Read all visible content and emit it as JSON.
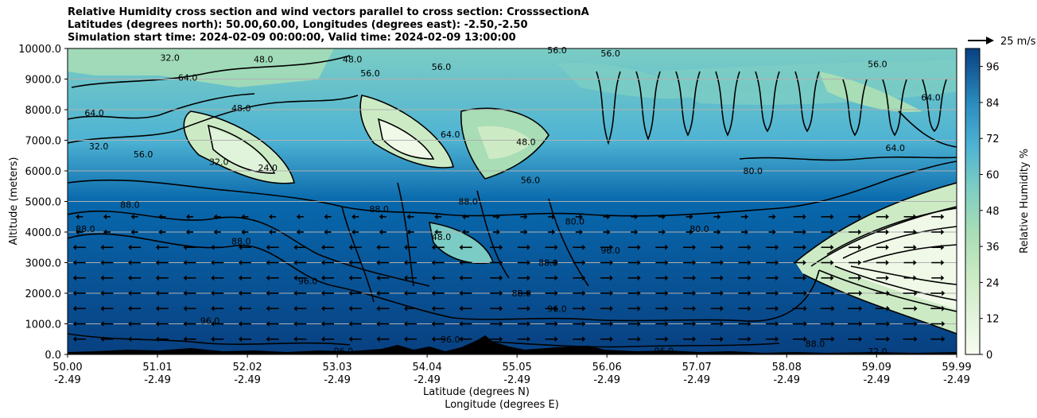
{
  "title": {
    "line1": "Relative Humidity cross section and wind vectors parallel to cross section: CrosssectionA",
    "line2": "Latitudes (degrees north): 50.00,60.00, Longitudes (degrees east): -2.50,-2.50",
    "line3": "Simulation start time: 2024-02-09 00:00:00, Valid time: 2024-02-09 13:00:00"
  },
  "colors": {
    "low": "#f7fcf0",
    "mid_low": "#a8ddb5",
    "mid": "#4eb3d3",
    "mid_high": "#2b8cbe",
    "high": "#084081",
    "contour": "#000000",
    "terrain": "#000000"
  },
  "chart_data": {
    "type": "heatmap",
    "subtype": "filled contour cross-section with wind vectors",
    "ylabel": "Altitude (meters)",
    "xlabel_line1": "Latitude (degrees N)",
    "xlabel_line2": "Longitude (degrees E)",
    "y_ticks": [
      "0.0",
      "1000.0",
      "2000.0",
      "3000.0",
      "4000.0",
      "5000.0",
      "6000.0",
      "7000.0",
      "8000.0",
      "9000.0",
      "10000.0"
    ],
    "y_tick_values": [
      0,
      1000,
      2000,
      3000,
      4000,
      5000,
      6000,
      7000,
      8000,
      9000,
      10000
    ],
    "ylim": [
      0,
      10000
    ],
    "x_ticks": [
      {
        "lat": "50.00",
        "lon": "-2.49"
      },
      {
        "lat": "51.01",
        "lon": "-2.49"
      },
      {
        "lat": "52.02",
        "lon": "-2.49"
      },
      {
        "lat": "53.03",
        "lon": "-2.49"
      },
      {
        "lat": "54.04",
        "lon": "-2.49"
      },
      {
        "lat": "55.05",
        "lon": "-2.49"
      },
      {
        "lat": "56.06",
        "lon": "-2.49"
      },
      {
        "lat": "57.07",
        "lon": "-2.49"
      },
      {
        "lat": "58.08",
        "lon": "-2.49"
      },
      {
        "lat": "59.09",
        "lon": "-2.49"
      },
      {
        "lat": "59.99",
        "lon": "-2.49"
      }
    ],
    "x_tick_values": [
      50.0,
      51.01,
      52.02,
      53.03,
      54.04,
      55.05,
      56.06,
      57.07,
      58.08,
      59.09,
      59.99
    ],
    "xlim": [
      50.0,
      59.99
    ],
    "colorbar": {
      "label": "Relative Humidity %",
      "ticks": [
        "0",
        "12",
        "24",
        "36",
        "48",
        "60",
        "72",
        "84",
        "96"
      ],
      "tick_values": [
        0,
        12,
        24,
        36,
        48,
        60,
        72,
        84,
        96
      ],
      "range": [
        0,
        102
      ]
    },
    "wind_reference": {
      "label": "25 m/s",
      "speed": 25
    },
    "contour_labels": [
      {
        "text": "32.0",
        "lat": 51.15,
        "alt": 9700
      },
      {
        "text": "48.0",
        "lat": 52.2,
        "alt": 9650
      },
      {
        "text": "48.0",
        "lat": 53.2,
        "alt": 9650
      },
      {
        "text": "56.0",
        "lat": 53.4,
        "alt": 9200
      },
      {
        "text": "56.0",
        "lat": 54.2,
        "alt": 9400
      },
      {
        "text": "56.0",
        "lat": 55.5,
        "alt": 9950
      },
      {
        "text": "56.0",
        "lat": 56.1,
        "alt": 9850
      },
      {
        "text": "56.0",
        "lat": 59.1,
        "alt": 9500
      },
      {
        "text": "64.0",
        "lat": 51.35,
        "alt": 9050
      },
      {
        "text": "64.0",
        "lat": 50.3,
        "alt": 7900
      },
      {
        "text": "48.0",
        "lat": 51.95,
        "alt": 8050
      },
      {
        "text": "56.0",
        "lat": 50.85,
        "alt": 6550
      },
      {
        "text": "32.0",
        "lat": 50.35,
        "alt": 6800
      },
      {
        "text": "24.0",
        "lat": 52.25,
        "alt": 6100
      },
      {
        "text": "32.0",
        "lat": 51.7,
        "alt": 6300
      },
      {
        "text": "64.0",
        "lat": 54.3,
        "alt": 7200
      },
      {
        "text": "48.0",
        "lat": 55.15,
        "alt": 6950
      },
      {
        "text": "56.0",
        "lat": 55.2,
        "alt": 5700
      },
      {
        "text": "80.0",
        "lat": 57.7,
        "alt": 6000
      },
      {
        "text": "64.0",
        "lat": 59.3,
        "alt": 6750
      },
      {
        "text": "64.0",
        "lat": 59.7,
        "alt": 8400
      },
      {
        "text": "88.0",
        "lat": 50.7,
        "alt": 4900
      },
      {
        "text": "88.0",
        "lat": 53.5,
        "alt": 4750
      },
      {
        "text": "88.0",
        "lat": 50.2,
        "alt": 4100
      },
      {
        "text": "88.0",
        "lat": 51.95,
        "alt": 3700
      },
      {
        "text": "48.0",
        "lat": 54.2,
        "alt": 3850
      },
      {
        "text": "88.0",
        "lat": 54.5,
        "alt": 5000
      },
      {
        "text": "80.0",
        "lat": 55.7,
        "alt": 4350
      },
      {
        "text": "80.0",
        "lat": 57.1,
        "alt": 4100
      },
      {
        "text": "88.0",
        "lat": 55.4,
        "alt": 3000
      },
      {
        "text": "96.0",
        "lat": 52.7,
        "alt": 2400
      },
      {
        "text": "96.0",
        "lat": 56.1,
        "alt": 3400
      },
      {
        "text": "88.0",
        "lat": 55.1,
        "alt": 2000
      },
      {
        "text": "96.0",
        "lat": 51.6,
        "alt": 1100
      },
      {
        "text": "96.0",
        "lat": 53.1,
        "alt": 120
      },
      {
        "text": "96.0",
        "lat": 54.3,
        "alt": 500
      },
      {
        "text": "96.0",
        "lat": 55.5,
        "alt": 1500
      },
      {
        "text": "96.0",
        "lat": 56.7,
        "alt": 120
      },
      {
        "text": "72.0",
        "lat": 59.1,
        "alt": 100
      },
      {
        "text": "88.0",
        "lat": 58.4,
        "alt": 350
      }
    ]
  }
}
